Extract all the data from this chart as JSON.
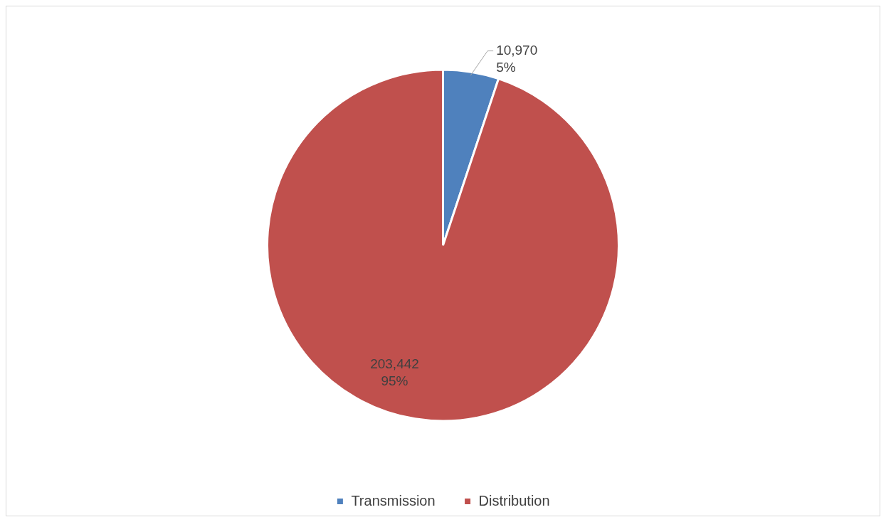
{
  "chart_data": {
    "type": "pie",
    "categories": [
      "Transmission",
      "Distribution"
    ],
    "values": [
      10970,
      203442
    ],
    "colors": [
      "#4f81bd",
      "#c0504d"
    ],
    "value_labels": [
      "10,970\n5%",
      "203,442\n95%"
    ],
    "legend": "bottom"
  }
}
